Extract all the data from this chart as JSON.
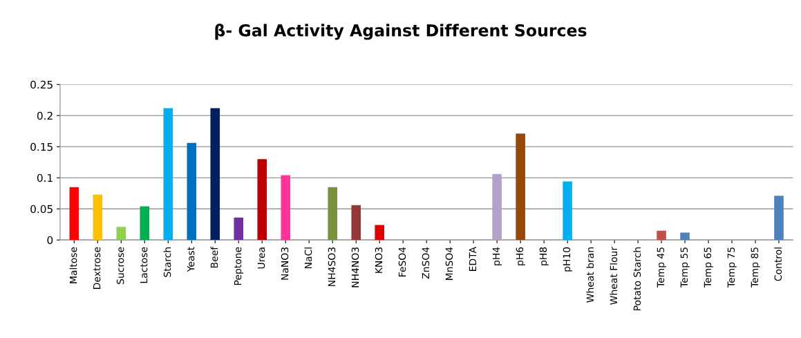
{
  "chart_data": {
    "type": "bar",
    "title": "β- Gal Activity Against Different Sources",
    "categories": [
      "Maltose",
      "Dextrose",
      "Sucrose",
      "Lactose",
      "Starch",
      "Yeast",
      "Beef",
      "Peptone",
      "Urea",
      "NaNO3",
      "NaCl",
      "NH4SO3",
      "NH4NO3",
      "KNO3",
      "FeSO4",
      "ZnSO4",
      "MnSO4",
      "EDTA",
      "pH4",
      "pH6",
      "pH8",
      "pH10",
      "Wheat bran",
      "Wheat Flour",
      "Potato Starch",
      "Temp 45",
      "Temp 55",
      "Temp 65",
      "Temp 75",
      "Temp 85",
      "Control"
    ],
    "values": [
      0.085,
      0.073,
      0.021,
      0.054,
      0.212,
      0.156,
      0.212,
      0.036,
      0.13,
      0.104,
      0,
      0.085,
      0.056,
      0.024,
      0,
      0,
      0,
      0,
      0.106,
      0.171,
      0,
      0.094,
      0,
      0,
      0,
      0.015,
      0.012,
      0,
      0,
      0,
      0.071
    ],
    "colors": [
      "#ff0000",
      "#ffc000",
      "#92d050",
      "#00b050",
      "#00b0f0",
      "#0070c0",
      "#002060",
      "#7030a0",
      "#c00000",
      "#ff3399",
      "#4f81bd",
      "#77933c",
      "#953735",
      "#e00000",
      "#4f81bd",
      "#4f81bd",
      "#4f81bd",
      "#4f81bd",
      "#b3a2c7",
      "#984807",
      "#4f81bd",
      "#00b0f0",
      "#4f81bd",
      "#4f81bd",
      "#4f81bd",
      "#c0504d",
      "#4f81bd",
      "#4f81bd",
      "#4f81bd",
      "#4f81bd",
      "#4f81bd"
    ],
    "ylim": [
      0,
      0.25
    ],
    "yticks": [
      0,
      0.05,
      0.1,
      0.15,
      0.2,
      0.25
    ],
    "grid": "y"
  }
}
